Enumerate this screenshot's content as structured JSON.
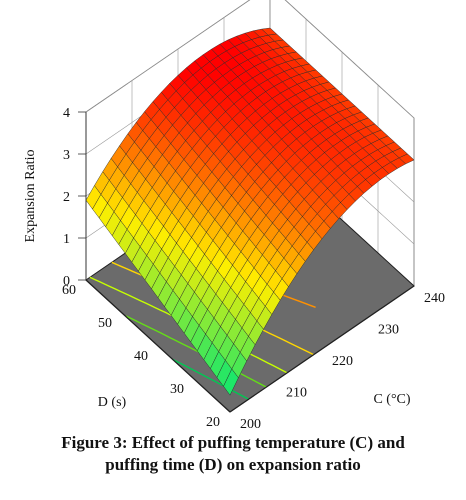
{
  "caption": {
    "line1": "Figure 3: Effect of puffing temperature (C) and",
    "line2": "puffing time (D) on expansion ratio"
  },
  "chart_data": {
    "type": "surface",
    "zlabel": "Expansion Ratio",
    "xlabel": "C (°C)",
    "ylabel": "D (s)",
    "x": {
      "ticks": [
        200,
        210,
        220,
        230,
        240
      ],
      "range": [
        200,
        240
      ]
    },
    "y": {
      "ticks": [
        20,
        30,
        40,
        50,
        60
      ],
      "range": [
        20,
        60
      ]
    },
    "z": {
      "ticks": [
        0,
        1,
        2,
        3,
        4
      ],
      "range": [
        0,
        4
      ]
    },
    "surface_points": [
      {
        "C": 200,
        "D": 20,
        "expansion_ratio": 0.4
      },
      {
        "C": 200,
        "D": 60,
        "expansion_ratio": 1.9
      },
      {
        "C": 240,
        "D": 20,
        "expansion_ratio": 3.0
      },
      {
        "C": 240,
        "D": 60,
        "expansion_ratio": 3.0
      },
      {
        "C": 220,
        "D": 40,
        "expansion_ratio": 3.4
      }
    ],
    "colors": {
      "low": "#00e676",
      "mid": "#ffee00",
      "high": "#ff0000",
      "floor": "#6b6b6b"
    },
    "grid": true
  }
}
